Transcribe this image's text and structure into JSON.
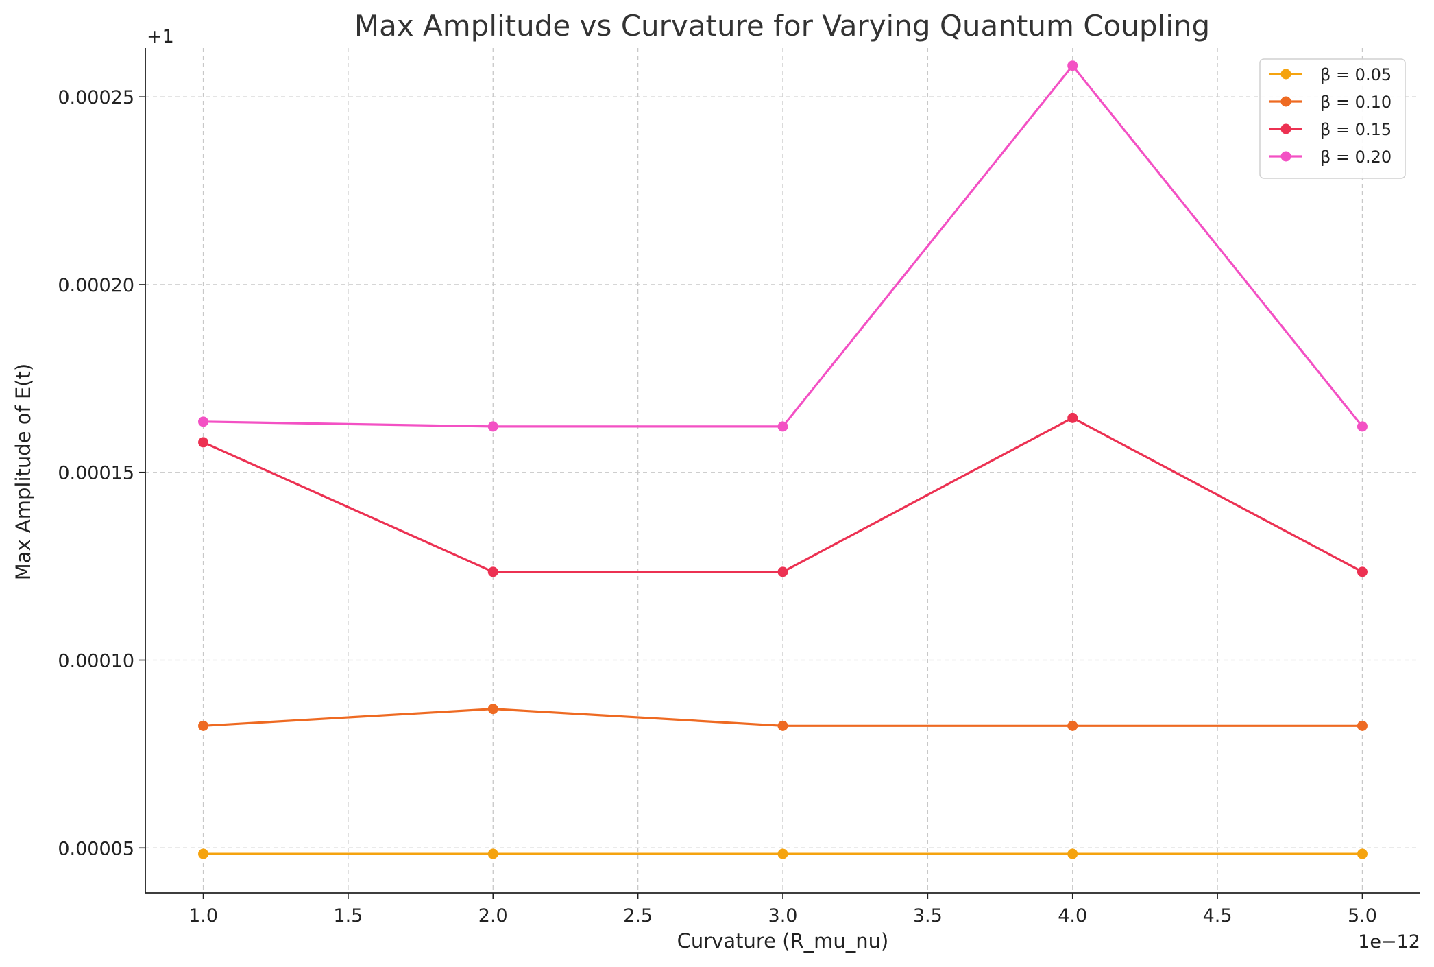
{
  "chart_data": {
    "type": "line",
    "title": "Max Amplitude vs Curvature for Varying Quantum Coupling",
    "xlabel": "Curvature (R_mu_nu)",
    "ylabel": "Max Amplitude of E(t)",
    "x_offset_text": "1e−12",
    "y_offset_text": "+1",
    "x": [
      1.0,
      2.0,
      3.0,
      4.0,
      5.0
    ],
    "xlim": [
      0.8,
      5.2
    ],
    "ylim": [
      3.8e-05,
      0.000263
    ],
    "x_ticks": [
      1.0,
      1.5,
      2.0,
      2.5,
      3.0,
      3.5,
      4.0,
      4.5,
      5.0
    ],
    "x_tick_labels": [
      "1.0",
      "1.5",
      "2.0",
      "2.5",
      "3.0",
      "3.5",
      "4.0",
      "4.5",
      "5.0"
    ],
    "y_ticks": [
      5e-05,
      0.0001,
      0.00015,
      0.0002,
      0.00025
    ],
    "y_tick_labels": [
      "0.00005",
      "0.00010",
      "0.00015",
      "0.00020",
      "0.00025"
    ],
    "grid": true,
    "legend_position": "top-right",
    "series": [
      {
        "name": "β = 0.05",
        "color": "#f5a30f",
        "values": [
          4.84e-05,
          4.84e-05,
          4.84e-05,
          4.84e-05,
          4.84e-05
        ]
      },
      {
        "name": "β = 0.10",
        "color": "#ee6a22",
        "values": [
          8.25e-05,
          8.7e-05,
          8.25e-05,
          8.25e-05,
          8.25e-05
        ]
      },
      {
        "name": "β = 0.15",
        "color": "#ec3152",
        "values": [
          0.000158,
          0.0001235,
          0.0001235,
          0.0001645,
          0.0001235
        ]
      },
      {
        "name": "β = 0.20",
        "color": "#f351c4",
        "values": [
          0.0001635,
          0.0001622,
          0.0001622,
          0.0002583,
          0.0001622
        ]
      }
    ]
  }
}
